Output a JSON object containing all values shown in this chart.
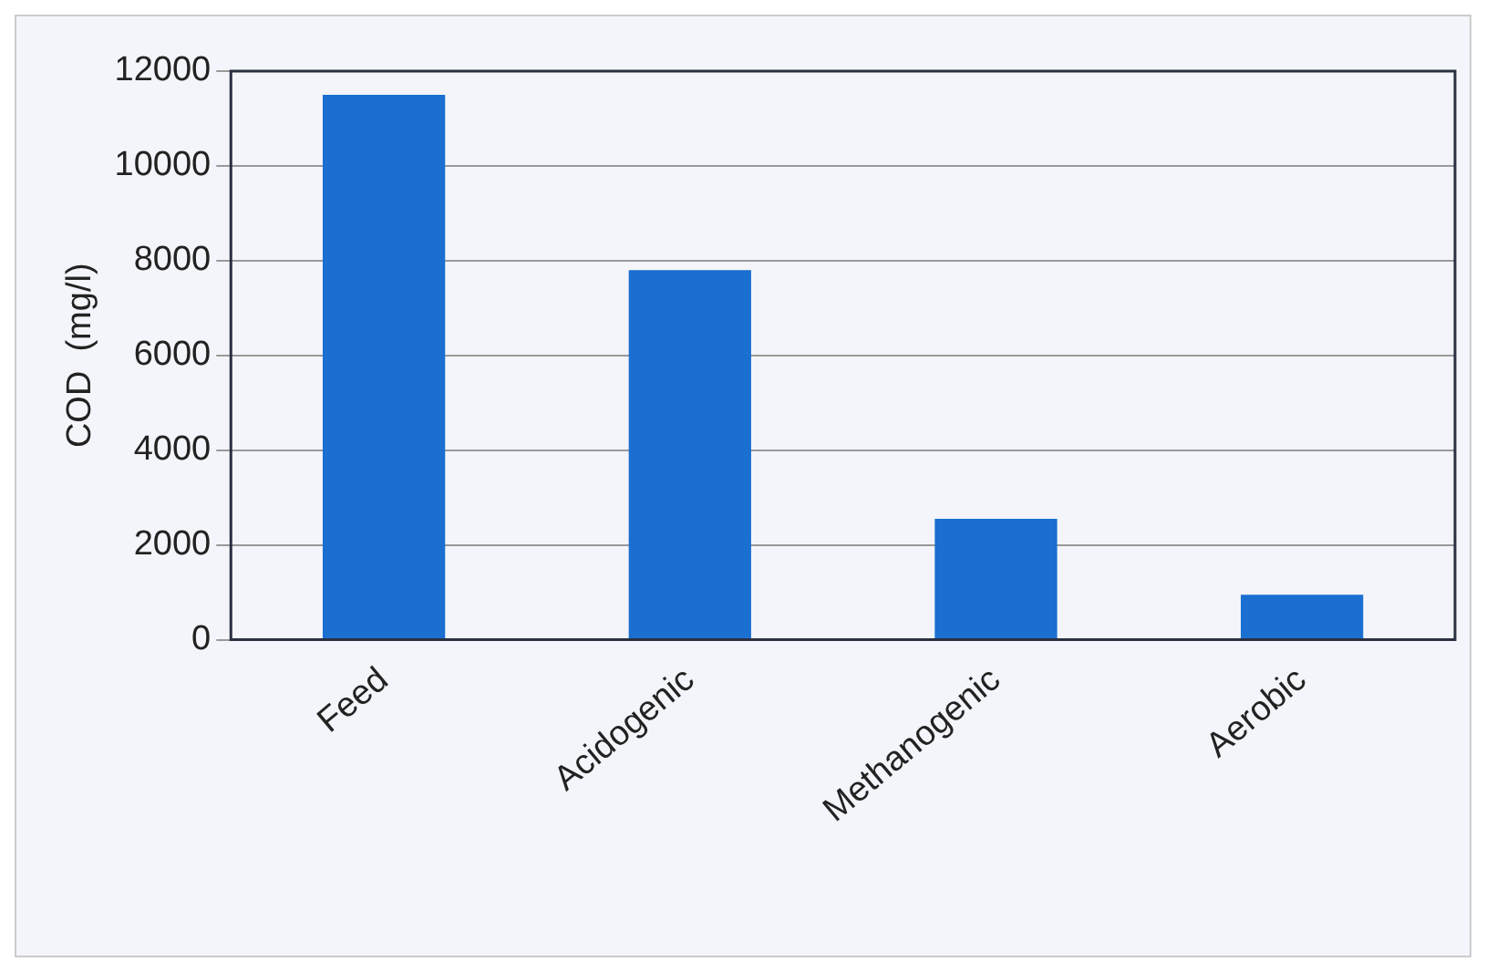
{
  "chart_data": {
    "type": "bar",
    "ylabel": "COD  (mg/l)",
    "categories": [
      "Feed",
      "Acidogenic",
      "Methanogenic",
      "Aerobic"
    ],
    "values": [
      11500,
      7800,
      2550,
      950
    ],
    "color": "#1a6fd0",
    "ylim": [
      0,
      12000
    ],
    "yticks": [
      0,
      2000,
      4000,
      6000,
      8000,
      10000,
      12000
    ],
    "grid": "y"
  }
}
